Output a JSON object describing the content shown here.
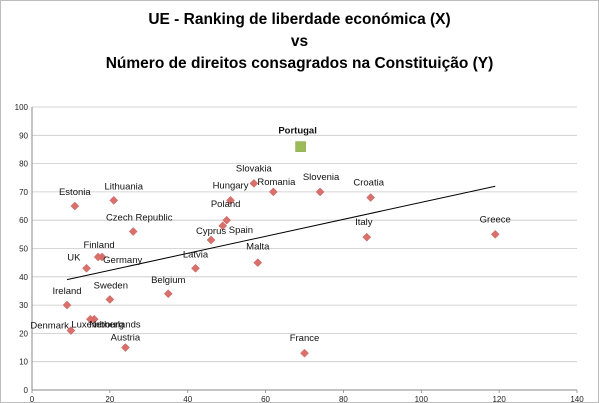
{
  "chart_data": {
    "type": "scatter",
    "title_lines": [
      "UE - Ranking de liberdade económica (X)",
      "vs",
      "Número de direitos consagrados na Constituição (Y)"
    ],
    "xlim": [
      0,
      140
    ],
    "ylim": [
      0,
      100
    ],
    "x_ticks": [
      "0",
      "20",
      "40",
      "60",
      "80",
      "100",
      "120",
      "140"
    ],
    "y_ticks": [
      "0",
      "10",
      "20",
      "30",
      "40",
      "50",
      "60",
      "70",
      "80",
      "90",
      "100"
    ],
    "grid": "horizontal",
    "marker_color": "#d9706b",
    "highlight_color": "#9bbb59",
    "trendline": {
      "x": [
        9,
        119
      ],
      "y": [
        39,
        72
      ]
    },
    "points": [
      {
        "label": "Estonia",
        "x": 11,
        "y": 65
      },
      {
        "label": "Lithuania",
        "x": 21,
        "y": 67
      },
      {
        "label": "Czech Republic",
        "x": 26,
        "y": 56
      },
      {
        "label": "Finland",
        "x": 18,
        "y": 47
      },
      {
        "label": "UK",
        "x": 14,
        "y": 43
      },
      {
        "label": "Germany",
        "x": 17,
        "y": 47
      },
      {
        "label": "Ireland",
        "x": 9,
        "y": 30
      },
      {
        "label": "Sweden",
        "x": 20,
        "y": 32
      },
      {
        "label": "Luxembourg",
        "x": 16,
        "y": 25
      },
      {
        "label": "Netherlands",
        "x": 15,
        "y": 25
      },
      {
        "label": "Denmark",
        "x": 10,
        "y": 21
      },
      {
        "label": "Austria",
        "x": 24,
        "y": 15
      },
      {
        "label": "Belgium",
        "x": 35,
        "y": 34
      },
      {
        "label": "Latvia",
        "x": 42,
        "y": 43
      },
      {
        "label": "Cyprus",
        "x": 46,
        "y": 53
      },
      {
        "label": "Poland",
        "x": 50,
        "y": 60
      },
      {
        "label": "Spain",
        "x": 49,
        "y": 58
      },
      {
        "label": "Hungary",
        "x": 51,
        "y": 67
      },
      {
        "label": "Slovakia",
        "x": 57,
        "y": 73
      },
      {
        "label": "Romania",
        "x": 62,
        "y": 70
      },
      {
        "label": "Slovenia",
        "x": 74,
        "y": 70
      },
      {
        "label": "Malta",
        "x": 58,
        "y": 45
      },
      {
        "label": "France",
        "x": 70,
        "y": 13
      },
      {
        "label": "Croatia",
        "x": 87,
        "y": 68
      },
      {
        "label": "Italy",
        "x": 86,
        "y": 54
      },
      {
        "label": "Greece",
        "x": 119,
        "y": 55
      },
      {
        "label": "Portugal",
        "x": 69,
        "y": 86,
        "highlight": true
      }
    ]
  }
}
